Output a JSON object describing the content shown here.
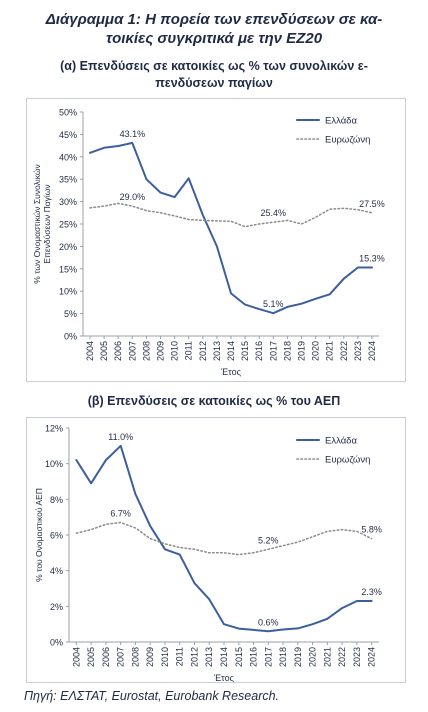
{
  "title_line1": "Διάγραμμα 1: Η πορεία των επενδύσεων σε κα-",
  "title_line2": "τοικίες συγκριτικά με την ΕΖ20",
  "source": "Πηγή: ΕΛΣΤΑΤ, Eurostat, Eurobank Research.",
  "colors": {
    "greece": "#3b5f9e",
    "eurozone": "#8a8a8a",
    "axis": "#9aa1ab",
    "text": "#1f2a44"
  },
  "chart_data": [
    {
      "type": "line",
      "title_line1": "(α) Επενδύσεις σε κατοικίες ως % των συνολικών ε-",
      "title_line2": "πενδύσεων παγίων",
      "xlabel": "Έτος",
      "ylabel_line1": "% των Ονομαστικών Συνολικών",
      "ylabel_line2": "Επενδύσεων Παγίων",
      "ylim": [
        0,
        50
      ],
      "yticks": [
        0,
        5,
        10,
        15,
        20,
        25,
        30,
        35,
        40,
        45,
        50
      ],
      "tick_suffix": "%",
      "x": [
        2004,
        2005,
        2006,
        2007,
        2008,
        2009,
        2010,
        2011,
        2012,
        2013,
        2014,
        2015,
        2016,
        2017,
        2018,
        2019,
        2020,
        2021,
        2022,
        2023,
        2024
      ],
      "legend_position": "top-right",
      "series": [
        {
          "name": "Ελλάδα",
          "style": "solid",
          "values": [
            40.9,
            42.0,
            42.4,
            43.1,
            35.0,
            32.0,
            31.0,
            35.2,
            27.0,
            20.0,
            9.5,
            7.0,
            6.0,
            5.1,
            6.5,
            7.2,
            8.3,
            9.3,
            12.8,
            15.3,
            15.3
          ]
        },
        {
          "name": "Ευρωζώνη",
          "style": "dotted",
          "values": [
            28.6,
            29.0,
            29.6,
            29.0,
            28.0,
            27.5,
            26.8,
            26.0,
            25.8,
            25.7,
            25.6,
            24.4,
            25.0,
            25.4,
            25.8,
            25.0,
            26.5,
            28.3,
            28.5,
            28.2,
            27.5
          ]
        }
      ],
      "annotations": [
        {
          "text": "43.1%",
          "x": 2007,
          "y": 43.1,
          "series": 0,
          "pos": "above"
        },
        {
          "text": "29.0%",
          "x": 2007,
          "y": 29.0,
          "series": 1,
          "pos": "above"
        },
        {
          "text": "25.4%",
          "x": 2017,
          "y": 25.4,
          "series": 1,
          "pos": "above"
        },
        {
          "text": "27.5%",
          "x": 2024,
          "y": 27.5,
          "series": 1,
          "pos": "above"
        },
        {
          "text": "5.1%",
          "x": 2017,
          "y": 5.1,
          "series": 0,
          "pos": "above"
        },
        {
          "text": "15.3%",
          "x": 2024,
          "y": 15.3,
          "series": 0,
          "pos": "above"
        }
      ]
    },
    {
      "type": "line",
      "title_line1": "(β) Επενδύσεις σε κατοικίες ως % του ΑΕΠ",
      "title_line2": "",
      "xlabel": "Έτος",
      "ylabel_line1": "% του Ονομαστικού ΑΕΠ",
      "ylabel_line2": "",
      "ylim": [
        0,
        12
      ],
      "yticks": [
        0,
        2,
        4,
        6,
        8,
        10,
        12
      ],
      "tick_suffix": "%",
      "x": [
        2004,
        2005,
        2006,
        2007,
        2008,
        2009,
        2010,
        2011,
        2012,
        2013,
        2014,
        2015,
        2016,
        2017,
        2018,
        2019,
        2020,
        2021,
        2022,
        2023,
        2024
      ],
      "legend_position": "top-right",
      "series": [
        {
          "name": "Ελλάδα",
          "style": "solid",
          "values": [
            10.2,
            8.9,
            10.2,
            11.0,
            8.3,
            6.5,
            5.2,
            4.9,
            3.3,
            2.4,
            1.0,
            0.75,
            0.68,
            0.6,
            0.7,
            0.76,
            1.0,
            1.3,
            1.9,
            2.3,
            2.3
          ]
        },
        {
          "name": "Ευρωζώνη",
          "style": "dotted",
          "values": [
            6.1,
            6.3,
            6.6,
            6.7,
            6.4,
            5.8,
            5.5,
            5.3,
            5.2,
            5.0,
            5.0,
            4.9,
            5.0,
            5.2,
            5.4,
            5.6,
            5.9,
            6.2,
            6.3,
            6.2,
            5.8
          ]
        }
      ],
      "annotations": [
        {
          "text": "11.0%",
          "x": 2007,
          "y": 11.0,
          "series": 0,
          "pos": "above"
        },
        {
          "text": "6.7%",
          "x": 2007,
          "y": 6.7,
          "series": 1,
          "pos": "above"
        },
        {
          "text": "5.2%",
          "x": 2017,
          "y": 5.2,
          "series": 1,
          "pos": "above"
        },
        {
          "text": "5.8%",
          "x": 2024,
          "y": 5.8,
          "series": 1,
          "pos": "above"
        },
        {
          "text": "0.6%",
          "x": 2017,
          "y": 0.6,
          "series": 0,
          "pos": "above"
        },
        {
          "text": "2.3%",
          "x": 2024,
          "y": 2.3,
          "series": 0,
          "pos": "above"
        }
      ]
    }
  ]
}
